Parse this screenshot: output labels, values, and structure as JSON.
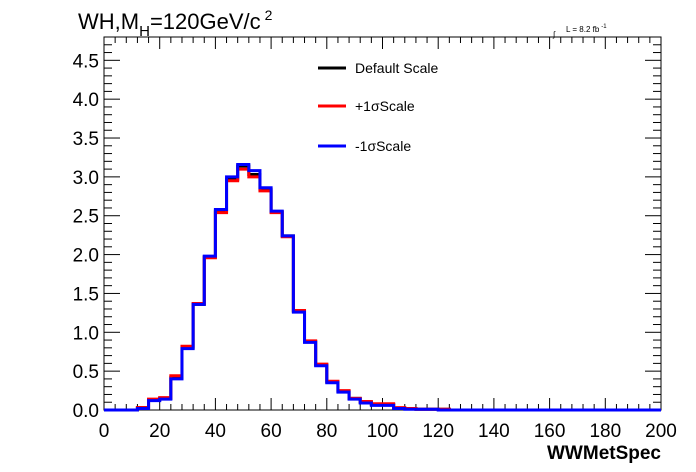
{
  "chart_data": {
    "type": "line",
    "title_parts": {
      "main": "WH,M",
      "sub": "H",
      "rest": "=120GeV/c",
      "sup": "2"
    },
    "lumi_parts": {
      "integral": "∫",
      "text": "L = 8.2 fb",
      "sup": "-1"
    },
    "xlabel": "WWMetSpec",
    "ylabel": "",
    "xlim": [
      0,
      200
    ],
    "ylim": [
      0,
      4.8
    ],
    "x_ticks": [
      "0",
      "20",
      "40",
      "60",
      "80",
      "100",
      "120",
      "140",
      "160",
      "180",
      "200"
    ],
    "y_ticks": [
      "0.0",
      "0.5",
      "1.0",
      "1.5",
      "2.0",
      "2.5",
      "3.0",
      "3.5",
      "4.0",
      "4.5"
    ],
    "grid": false,
    "legend_position": "top-center",
    "bin_width": 4,
    "bin_edges_start": 0,
    "series": [
      {
        "name": "Default Scale",
        "color": "#000000",
        "values": [
          0,
          0,
          0,
          0.03,
          0.13,
          0.15,
          0.42,
          0.8,
          1.36,
          1.97,
          2.56,
          2.97,
          3.14,
          3.03,
          2.84,
          2.55,
          2.24,
          1.27,
          0.88,
          0.58,
          0.36,
          0.24,
          0.15,
          0.1,
          0.07,
          0.07,
          0.02,
          0.02,
          0.01,
          0.01,
          0.01,
          0,
          0,
          0,
          0,
          0,
          0,
          0,
          0,
          0,
          0,
          0,
          0,
          0,
          0,
          0,
          0,
          0,
          0,
          0
        ]
      },
      {
        "name": "+1σScale",
        "color": "#ff0000",
        "values": [
          0,
          0,
          0,
          0.03,
          0.14,
          0.16,
          0.44,
          0.82,
          1.37,
          1.96,
          2.54,
          2.95,
          3.1,
          3.0,
          2.82,
          2.54,
          2.23,
          1.28,
          0.89,
          0.59,
          0.37,
          0.25,
          0.15,
          0.11,
          0.08,
          0.08,
          0.03,
          0.02,
          0.01,
          0.01,
          0.01,
          0,
          0,
          0,
          0,
          0,
          0,
          0,
          0,
          0,
          0,
          0,
          0,
          0,
          0,
          0,
          0,
          0,
          0,
          0
        ]
      },
      {
        "name": "-1σScale",
        "color": "#0000ff",
        "values": [
          0,
          0,
          0,
          0.02,
          0.12,
          0.14,
          0.4,
          0.79,
          1.36,
          1.98,
          2.58,
          3.0,
          3.16,
          3.08,
          2.86,
          2.56,
          2.24,
          1.26,
          0.87,
          0.57,
          0.35,
          0.23,
          0.14,
          0.09,
          0.06,
          0.06,
          0.02,
          0.01,
          0.01,
          0.01,
          0,
          0,
          0,
          0,
          0,
          0,
          0,
          0,
          0,
          0,
          0,
          0,
          0,
          0,
          0,
          0,
          0,
          0,
          0,
          0
        ]
      }
    ]
  }
}
